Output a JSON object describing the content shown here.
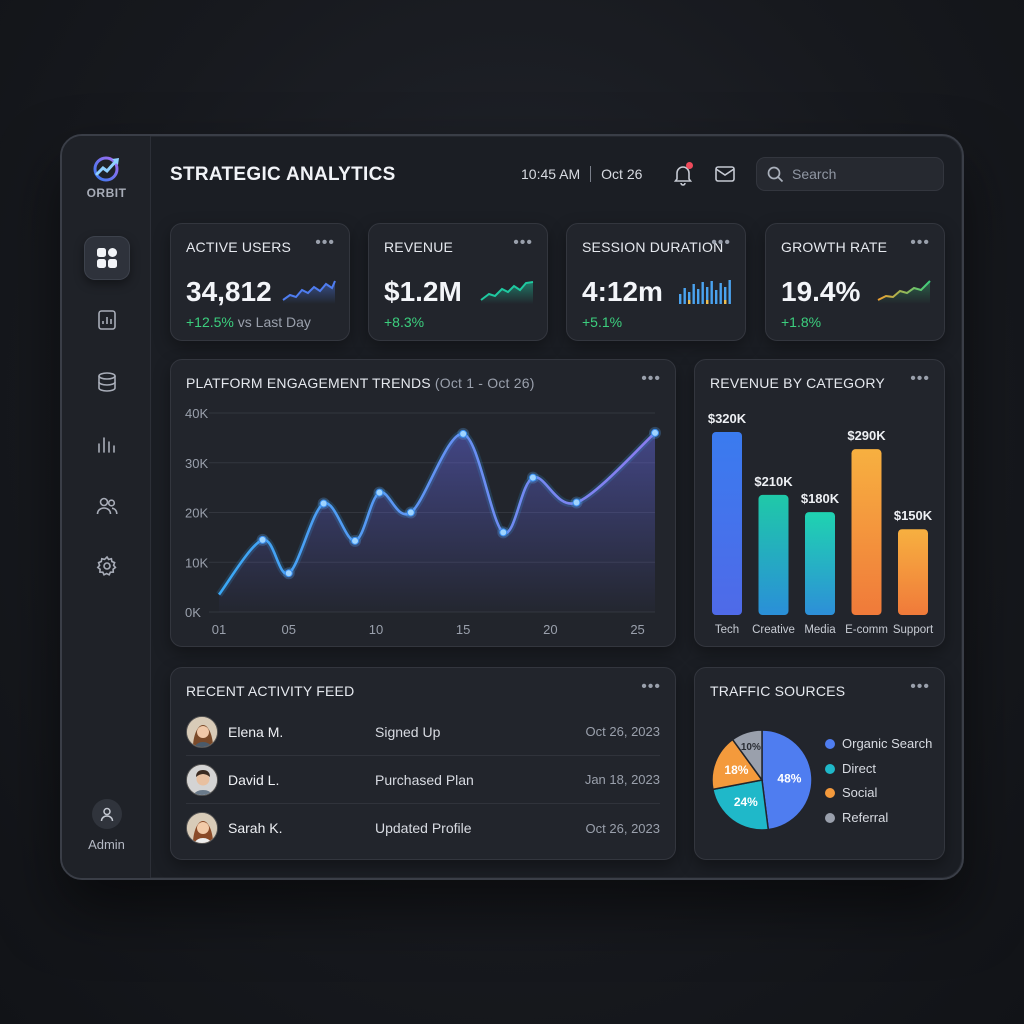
{
  "app": {
    "logo_text": "ORBIT",
    "title": "STRATEGIC ANALYTICS",
    "admin_label": "Admin"
  },
  "header": {
    "time": "10:45 AM",
    "date": "Oct 26",
    "search_placeholder": "Search"
  },
  "nav": [
    {
      "icon": "dashboard-icon",
      "active": true
    },
    {
      "icon": "report-icon",
      "active": false
    },
    {
      "icon": "database-icon",
      "active": false
    },
    {
      "icon": "bar-chart-icon",
      "active": false
    },
    {
      "icon": "users-icon",
      "active": false
    },
    {
      "icon": "gear-icon",
      "active": false
    }
  ],
  "kpis": [
    {
      "label": "ACTIVE USERS",
      "value": "34,812",
      "delta": "+12.5%",
      "note": " vs Last Day",
      "spark": "line",
      "color": "#4f7df0"
    },
    {
      "label": "REVENUE",
      "value": "$1.2M",
      "delta": "+8.3%",
      "note": "",
      "spark": "line",
      "color": "#1fc9a0"
    },
    {
      "label": "SESSION DURATION",
      "value": "4:12m",
      "delta": "+5.1%",
      "note": "",
      "spark": "bars",
      "color": "#4aa3f0"
    },
    {
      "label": "GROWTH RATE",
      "value": "19.4%",
      "delta": "+1.8%",
      "note": "",
      "spark": "line",
      "color": "#e0b43c"
    }
  ],
  "engagement": {
    "title": "PLATFORM ENGAGEMENT TRENDS",
    "range": "(Oct 1 - Oct 26)"
  },
  "revenue_by_category": {
    "title": "REVENUE BY CATEGORY"
  },
  "traffic": {
    "title": "TRAFFIC SOURCES"
  },
  "feed": {
    "title": "RECENT ACTIVITY FEED",
    "rows": [
      {
        "name": "Elena M.",
        "action": "Signed Up",
        "date": "Oct 26, 2023"
      },
      {
        "name": "David L.",
        "action": "Purchased Plan",
        "date": "Jan 18, 2023"
      },
      {
        "name": "Sarah K.",
        "action": "Updated Profile",
        "date": "Oct 26, 2023"
      }
    ]
  },
  "chart_data": [
    {
      "type": "line",
      "title": "PLATFORM ENGAGEMENT TRENDS",
      "subtitle": "(Oct 1 - Oct 26)",
      "x_ticks": [
        "01",
        "05",
        "10",
        "15",
        "20",
        "25"
      ],
      "y_ticks": [
        "0K",
        "10K",
        "20K",
        "30K",
        "40K"
      ],
      "ylim": [
        0,
        40000
      ],
      "xlim": [
        1,
        26
      ],
      "x": [
        1,
        3.5,
        5,
        7,
        8.8,
        10.2,
        12,
        15,
        17.3,
        19,
        21.5,
        26
      ],
      "values": [
        3500,
        14500,
        7800,
        21800,
        14300,
        24000,
        20000,
        35800,
        16000,
        27000,
        22000,
        36000
      ],
      "markers_at": [
        3.5,
        5,
        7,
        8.8,
        10.2,
        12,
        15,
        17.3,
        19,
        21.5,
        26
      ],
      "grid": true
    },
    {
      "type": "bar",
      "title": "REVENUE BY CATEGORY",
      "categories": [
        "Tech",
        "Creative",
        "Media",
        "E-comm",
        "Support"
      ],
      "values": [
        320,
        210,
        180,
        290,
        150
      ],
      "value_labels": [
        "$320K",
        "$210K",
        "$180K",
        "$290K",
        "$150K"
      ],
      "ylim": [
        0,
        320
      ],
      "colors": [
        [
          "#3a7bef",
          "#4f6ae8"
        ],
        [
          "#1fc9a8",
          "#2a8fd8"
        ],
        [
          "#1fd3b0",
          "#2d8fd8"
        ],
        [
          "#f7b040",
          "#f07a3a"
        ],
        [
          "#f7b040",
          "#f07a3a"
        ]
      ]
    },
    {
      "type": "pie",
      "title": "TRAFFIC SOURCES",
      "labels": [
        "Organic Search",
        "Direct",
        "Social",
        "Referral"
      ],
      "values": [
        48,
        24,
        18,
        10
      ],
      "value_labels": [
        "48%",
        "24%",
        "18%",
        "10%"
      ],
      "colors": [
        "#4f7df0",
        "#1fb8c9",
        "#f49a3c",
        "#9aa0ac"
      ],
      "legend": "right"
    }
  ]
}
